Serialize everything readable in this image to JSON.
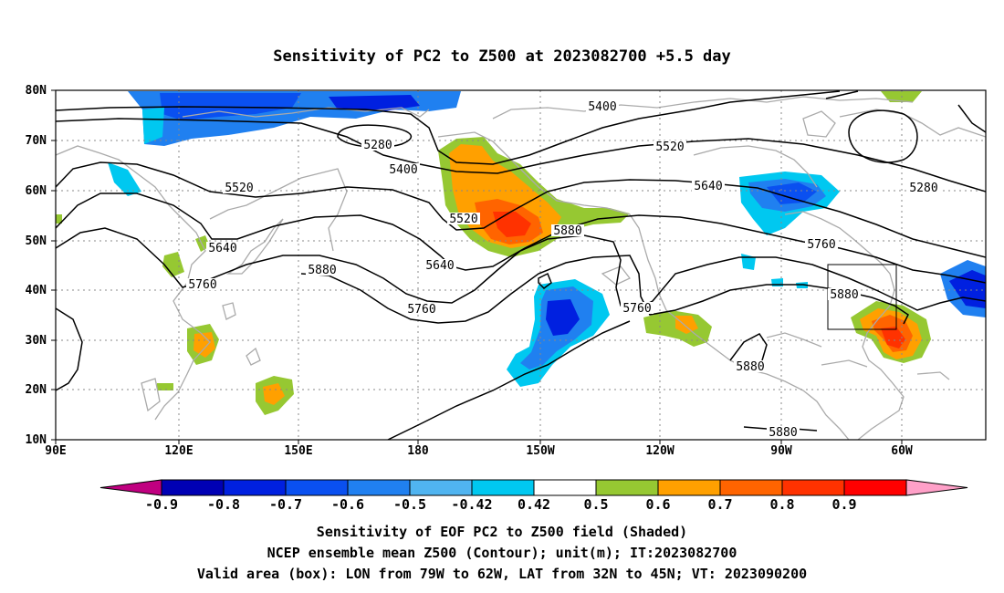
{
  "title": "Sensitivity of PC2 to Z500 at 2023082700 +5.5 day",
  "map": {
    "lat_range": [
      "10N",
      "80N"
    ],
    "lon_range": [
      "90E",
      "50W"
    ],
    "lat_labels": [
      "80N",
      "70N",
      "60N",
      "50N",
      "40N",
      "30N",
      "20N",
      "10N"
    ],
    "lon_labels": [
      "90E",
      "120E",
      "150E",
      "180",
      "150W",
      "120W",
      "90W",
      "60W"
    ],
    "grid": "dotted",
    "coastline_color": "#aaaaaa",
    "contour_color": "#000000",
    "contour_labels": [
      "5400",
      "5280",
      "5400",
      "5520",
      "5520",
      "5640",
      "5520",
      "5640",
      "5880",
      "5640",
      "5760",
      "5880",
      "5760",
      "5760",
      "5760",
      "5880",
      "5280",
      "5880",
      "5880"
    ],
    "valid_box": {
      "lon": [
        "79W",
        "62W"
      ],
      "lat": [
        "32N",
        "45N"
      ]
    }
  },
  "colorbar": {
    "labels": [
      "-0.9",
      "-0.8",
      "-0.7",
      "-0.6",
      "-0.5",
      "-0.42",
      "0.42",
      "0.5",
      "0.6",
      "0.7",
      "0.8",
      "0.9"
    ],
    "colors": [
      "#c00080",
      "#0000b4",
      "#0020e0",
      "#0a50f0",
      "#2080f0",
      "#50b4f0",
      "#00c8f0",
      "#ffffff",
      "#96c832",
      "#ffa000",
      "#ff6400",
      "#ff3200",
      "#ff0000",
      "#ffa0c8"
    ]
  },
  "caption": [
    "Sensitivity of EOF PC2 to Z500 field (Shaded)",
    "NCEP ensemble mean Z500 (Contour); unit(m); IT:2023082700",
    "Valid area (box): LON from 79W to 62W, LAT from 32N to 45N; VT: 2023090200"
  ]
}
